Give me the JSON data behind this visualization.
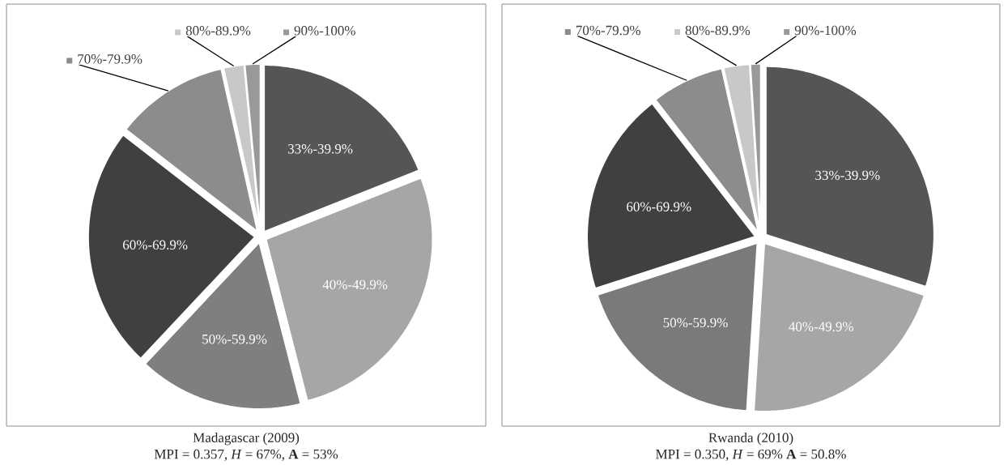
{
  "chart_data": [
    {
      "type": "pie",
      "legend": "top",
      "title": "Madagascar (2009)",
      "subtitle": "MPI = 0.357, *H* = 67%, **A** = 53%",
      "categories": [
        "33%-39.9%",
        "40%-49.9%",
        "50%-59.9%",
        "60%-69.9%",
        "70%-79.9%",
        "80%-89.9%",
        "90%-100%"
      ],
      "values": [
        19,
        27,
        16,
        23.5,
        11,
        2,
        1.5
      ],
      "colors": [
        "#555555",
        "#a6a6a6",
        "#7f7f7f",
        "#404040",
        "#8c8c8c",
        "#c8c8c8",
        "#999999"
      ]
    },
    {
      "type": "pie",
      "legend": "top",
      "title": "Rwanda (2010)",
      "subtitle": "MPI = 0.350, *H* = 69% **A** = 50.8%",
      "categories": [
        "33%-39.9%",
        "40%-49.9%",
        "50%-59.9%",
        "60%-69.9%",
        "70%-79.9%",
        "80%-89.9%",
        "90%-100%"
      ],
      "values": [
        30,
        21,
        19,
        19.5,
        7,
        2.5,
        1
      ],
      "colors": [
        "#555555",
        "#a6a6a6",
        "#7a7a7a",
        "#404040",
        "#8c8c8c",
        "#c8c8c8",
        "#999999"
      ]
    }
  ]
}
